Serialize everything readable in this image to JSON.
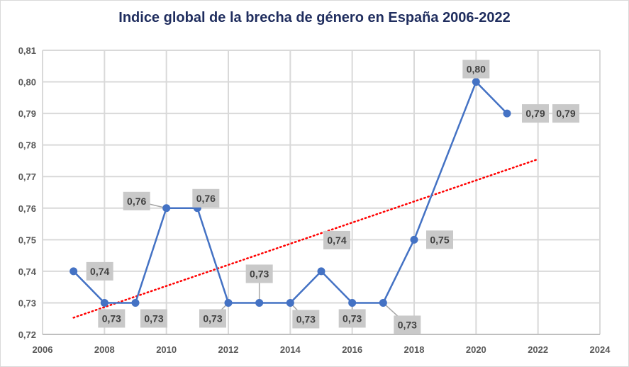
{
  "chart_data": {
    "type": "scatter",
    "title": "Indice global de la brecha de género en España 2006-2022",
    "xlabel": "",
    "ylabel": "",
    "xlim": [
      2006,
      2024
    ],
    "ylim": [
      0.72,
      0.81
    ],
    "grid": true,
    "x_ticks": [
      2006,
      2008,
      2010,
      2012,
      2014,
      2016,
      2018,
      2020,
      2022,
      2024
    ],
    "y_ticks": [
      "0,72",
      "0,73",
      "0,74",
      "0,75",
      "0,76",
      "0,77",
      "0,78",
      "0,79",
      "0,80",
      "0,81"
    ],
    "series": [
      {
        "name": "Indice global",
        "color": "#4472c4",
        "x": [
          2007,
          2008,
          2009,
          2010,
          2011,
          2012,
          2013,
          2014,
          2015,
          2016,
          2017,
          2018,
          2020,
          2021
        ],
        "y": [
          0.74,
          0.73,
          0.73,
          0.76,
          0.76,
          0.73,
          0.73,
          0.73,
          0.74,
          0.73,
          0.73,
          0.75,
          0.8,
          0.79
        ],
        "labels": [
          "0,74",
          "0,73",
          "0,73",
          "0,76",
          "0,76",
          "0,73",
          "0,73",
          "0,73",
          "0,74",
          "0,73",
          "0,73",
          "0,75",
          "0,80",
          "0,79"
        ]
      }
    ],
    "extra_labels": [
      "0,79"
    ],
    "trendline": {
      "type": "linear",
      "color": "#ff0000",
      "style": "dotted",
      "x_start": 2007,
      "x_end": 2022,
      "y_start": 0.7253,
      "y_end": 0.7755
    }
  }
}
